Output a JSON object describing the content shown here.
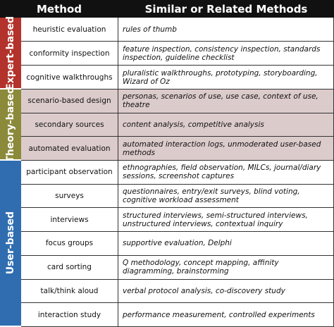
{
  "header": {
    "method": "Method",
    "similar": "Similar or Related Methods"
  },
  "groups": [
    {
      "label": "Expert-based",
      "rows": [
        {
          "method": "heuristic evaluation",
          "similar": "rules of thumb"
        },
        {
          "method": "conformity inspection",
          "similar": "feature inspection, consistency inspection, standards inspection, guideline checklist"
        },
        {
          "method": "cognitive walkthroughs",
          "similar": "pluralistic walkthroughs, prototyping, storyboarding, Wizard of Oz"
        }
      ]
    },
    {
      "label": "Theory-based",
      "rows": [
        {
          "method": "scenario-based design",
          "similar": "personas, scenarios of use, use case, context of use, theatre"
        },
        {
          "method": "secondary sources",
          "similar": "content analysis, competitive analysis"
        },
        {
          "method": "automated evaluation",
          "similar": "automated interaction logs, unmoderated user-based methods"
        }
      ]
    },
    {
      "label": "User-based",
      "rows": [
        {
          "method": "participant observation",
          "similar": "ethnographies, field observation, MILCs, journal/diary sessions, screenshot captures"
        },
        {
          "method": "surveys",
          "similar": "questionnaires, entry/exit surveys, blind voting, cognitive workload assessment"
        },
        {
          "method": "interviews",
          "similar": "structured interviews, semi-structured interviews, unstructured interviews, contextual inquiry"
        },
        {
          "method": "focus groups",
          "similar": "supportive evaluation, Delphi"
        },
        {
          "method": "card sorting",
          "similar": "Q methodology, concept mapping, affinity diagramming, brainstorming"
        },
        {
          "method": "talk/think aloud",
          "similar": "verbal protocol analysis, co-discovery study"
        },
        {
          "method": "interaction study",
          "similar": "performance measurement, controlled experiments"
        }
      ]
    }
  ]
}
